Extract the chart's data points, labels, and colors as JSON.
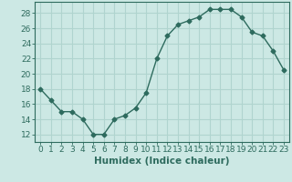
{
  "x": [
    0,
    1,
    2,
    3,
    4,
    5,
    6,
    7,
    8,
    9,
    10,
    11,
    12,
    13,
    14,
    15,
    16,
    17,
    18,
    19,
    20,
    21,
    22,
    23
  ],
  "y": [
    18,
    16.5,
    15,
    15,
    14,
    12,
    12,
    14,
    14.5,
    15.5,
    17.5,
    22,
    25,
    26.5,
    27,
    27.5,
    28.5,
    28.5,
    28.5,
    27.5,
    25.5,
    25,
    23,
    20.5
  ],
  "line_color": "#2e6b5e",
  "marker": "D",
  "marker_size": 2.5,
  "bg_color": "#cce8e4",
  "grid_color": "#b0d4cf",
  "xlabel": "Humidex (Indice chaleur)",
  "xlim": [
    -0.5,
    23.5
  ],
  "ylim": [
    11,
    29.5
  ],
  "yticks": [
    12,
    14,
    16,
    18,
    20,
    22,
    24,
    26,
    28
  ],
  "xtick_labels": [
    "0",
    "1",
    "2",
    "3",
    "4",
    "5",
    "6",
    "7",
    "8",
    "9",
    "10",
    "11",
    "12",
    "13",
    "14",
    "15",
    "16",
    "17",
    "18",
    "19",
    "20",
    "21",
    "22",
    "23"
  ],
  "xlabel_fontsize": 7.5,
  "tick_fontsize": 6.5,
  "line_width": 1.0
}
